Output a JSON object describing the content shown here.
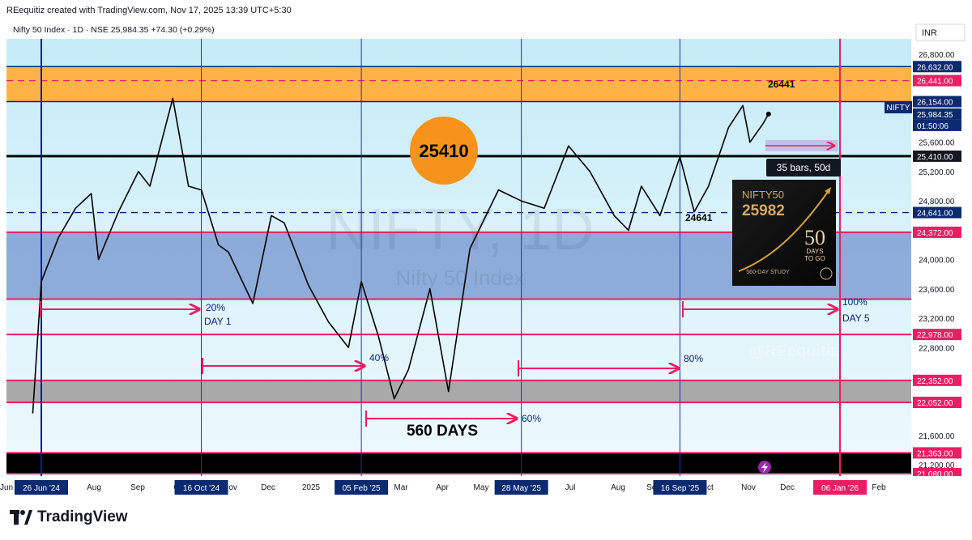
{
  "header": {
    "created_line": "REequitiz created with TradingView.com, Nov 17, 2025 13:39 UTC+5:30",
    "symbol_line": "Nifty 50 Index · 1D · NSE  25,984.35  +74.30 (+0.29%)",
    "currency": "INR"
  },
  "watermark": {
    "big": "NIFTY, 1D",
    "small": "Nifty 50 Index",
    "handle": "@REequitiz"
  },
  "colors": {
    "bg_top": "#c9eef8",
    "bg_bottom": "#eaf8fc",
    "orange_zone": "#ffb347",
    "blue_zone": "#7f9fd3",
    "gray_zone": "#a9a9a9",
    "black_zone": "#000000",
    "pink": "#e91e63",
    "navy": "#0d1f7a",
    "tag_dark": "#131722",
    "tag_navy": "#0b2a6f"
  },
  "price_scale": {
    "ticks": [
      "26,800.00",
      "25,600.00",
      "25,200.00",
      "24,800.00",
      "24,000.00",
      "23,600.00",
      "23,200.00",
      "22,800.00",
      "21,600.00",
      "21,200.00"
    ],
    "tags": [
      {
        "text": "26,632.00",
        "style": "navy"
      },
      {
        "text": "26,441.00",
        "style": "pink"
      },
      {
        "text": "26,154.00",
        "style": "navy"
      },
      {
        "text": "25,984.35",
        "style": "navy"
      },
      {
        "text": "01:50:06",
        "style": "navy"
      },
      {
        "text": "25,410.00",
        "style": "dark"
      },
      {
        "text": "24,641.00",
        "style": "navy"
      },
      {
        "text": "24,372.00",
        "style": "pink"
      },
      {
        "text": "22,978.00",
        "style": "pink"
      },
      {
        "text": "22,352.00",
        "style": "pink"
      },
      {
        "text": "22,052.00",
        "style": "pink"
      },
      {
        "text": "21,363.00",
        "style": "pink"
      },
      {
        "text": "21,080.00",
        "style": "pink"
      }
    ],
    "symbol_tag": "NIFTY"
  },
  "time_axis": {
    "labels": [
      "Jun",
      "Aug",
      "Sep",
      "Oct",
      "Nov",
      "Dec",
      "2025",
      "Mar",
      "Apr",
      "May",
      "Jul",
      "Aug",
      "Sep",
      "Oct",
      "Nov",
      "Dec",
      "Feb"
    ],
    "date_tags": [
      "26 Jun '24",
      "16 Oct '24",
      "05 Feb '25",
      "28 May '25",
      "16 Sep '25",
      "06 Jan '26"
    ]
  },
  "annotations": {
    "circle_value": "25410",
    "level_26441": "26441",
    "level_24641": "24641",
    "bars_box": "35 bars, 50d",
    "days_label": "560 DAYS",
    "pct": [
      "20%",
      "40%",
      "60%",
      "80%",
      "100%"
    ],
    "day1": "DAY 1",
    "day5": "DAY 5"
  },
  "thumbnail": {
    "title": "NIFTY50",
    "value": "25982",
    "big": "50",
    "line1": "DAYS",
    "line2": "TO GO",
    "footer": "560-DAY STUDY"
  },
  "brand": {
    "name": "TradingView"
  },
  "chart_data": {
    "type": "line",
    "title": "Nifty 50 Index · 1D · NSE",
    "series": [
      {
        "values_desc": "daily close",
        "x": [
          "2024-06-20",
          "2024-06-26",
          "2024-07-08",
          "2024-07-20",
          "2024-07-31",
          "2024-08-05",
          "2024-08-19",
          "2024-09-02",
          "2024-09-10",
          "2024-09-26",
          "2024-10-07",
          "2024-10-16",
          "2024-10-28",
          "2024-11-04",
          "2024-11-21",
          "2024-12-04",
          "2024-12-13",
          "2024-12-30",
          "2025-01-13",
          "2025-01-27",
          "2025-02-05",
          "2025-02-17",
          "2025-02-28",
          "2025-03-10",
          "2025-03-25",
          "2025-04-07",
          "2025-04-22",
          "2025-05-12",
          "2025-05-28",
          "2025-06-13",
          "2025-06-30",
          "2025-07-15",
          "2025-08-01",
          "2025-08-11",
          "2025-08-20",
          "2025-09-02",
          "2025-09-16",
          "2025-09-26",
          "2025-10-06",
          "2025-10-20",
          "2025-10-30",
          "2025-11-04",
          "2025-11-13",
          "2025-11-17"
        ],
        "y": [
          21900,
          23700,
          24300,
          24700,
          24900,
          24000,
          24650,
          25200,
          25000,
          26200,
          25000,
          24950,
          24200,
          24100,
          23400,
          24600,
          24500,
          23650,
          23150,
          22800,
          23700,
          22950,
          22100,
          22500,
          23600,
          22200,
          24150,
          24950,
          24800,
          24700,
          25550,
          25200,
          24600,
          24400,
          25000,
          24600,
          25400,
          24650,
          25000,
          25800,
          26100,
          25600,
          25850,
          25984.35
        ]
      }
    ],
    "horizontal_levels": [
      26632,
      26441,
      26154,
      25410,
      24641,
      24372,
      22978,
      22352,
      22052,
      21363,
      21080
    ],
    "zones": [
      {
        "from": 26154,
        "to": 26632,
        "color": "orange"
      },
      {
        "from": 23460,
        "to": 24372,
        "color": "blue"
      },
      {
        "from": 22052,
        "to": 22352,
        "color": "gray"
      },
      {
        "from": 21080,
        "to": 21363,
        "color": "black"
      }
    ],
    "ylim": [
      21080,
      26900
    ],
    "grid": false
  }
}
